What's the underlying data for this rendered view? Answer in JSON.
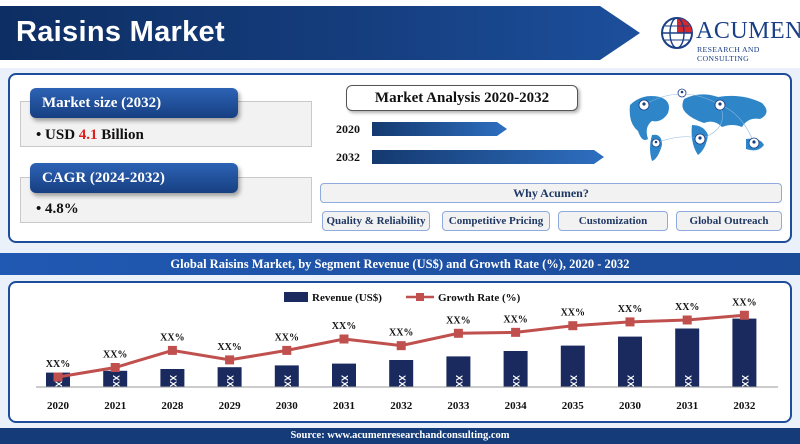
{
  "header": {
    "title": "Raisins Market",
    "logo_name": "ACUMEN",
    "logo_sub": "RESEARCH AND CONSULTING"
  },
  "metrics": {
    "market_size_label": "Market size (2032)",
    "market_size_prefix": "USD ",
    "market_size_value": "4.1",
    "market_size_suffix": " Billion",
    "cagr_label": "CAGR (2024-2032)",
    "cagr_value": "4.8%",
    "bullet": "•"
  },
  "analysis": {
    "title": "Market Analysis 2020-2032",
    "rows": [
      {
        "year": "2020",
        "value": 0.58
      },
      {
        "year": "2032",
        "value": 1.0
      }
    ]
  },
  "why": {
    "title": "Why Acumen?",
    "pills": [
      "Quality & Reliability",
      "Competitive Pricing",
      "Customization",
      "Global Outreach"
    ]
  },
  "chart_band_title": "Global Raisins Market, by Segment Revenue (US$) and Growth Rate (%), 2020 - 2032",
  "chart_data": {
    "type": "bar",
    "categories": [
      "2020",
      "2021",
      "2028",
      "2029",
      "2030",
      "2031",
      "2032",
      "2033",
      "2034",
      "2035",
      "2030",
      "2031",
      "2032"
    ],
    "series": [
      {
        "name": "Revenue (US$)",
        "kind": "bar",
        "color": "#1b2a5e",
        "values": [
          1.6,
          1.8,
          2.0,
          2.2,
          2.4,
          2.6,
          3.0,
          3.4,
          4.0,
          4.6,
          5.6,
          6.5,
          7.6
        ],
        "labels": [
          "XX",
          "XX",
          "XX",
          "XX",
          "XX",
          "XX",
          "XX",
          "XX",
          "XX",
          "XX",
          "XX",
          "XX",
          "XX"
        ]
      },
      {
        "name": "Growth Rate (%)",
        "kind": "line",
        "color": "#c0504d",
        "values": [
          2.0,
          3.0,
          4.8,
          3.8,
          4.8,
          6.0,
          5.3,
          6.6,
          6.7,
          7.4,
          7.8,
          8.0,
          8.5
        ],
        "labels": [
          "XX%",
          "XX%",
          "XX%",
          "XX%",
          "XX%",
          "XX%",
          "XX%",
          "XX%",
          "XX%",
          "XX%",
          "XX%",
          "XX%",
          "XX%"
        ]
      }
    ],
    "legend_position": "top-center",
    "grid": false
  },
  "footer": "Source: www.acumenresearchandconsulting.com",
  "colors": {
    "navy": "#163b79",
    "accent_red": "#e0201c",
    "bar": "#1b2a5e",
    "line": "#c0504d"
  }
}
